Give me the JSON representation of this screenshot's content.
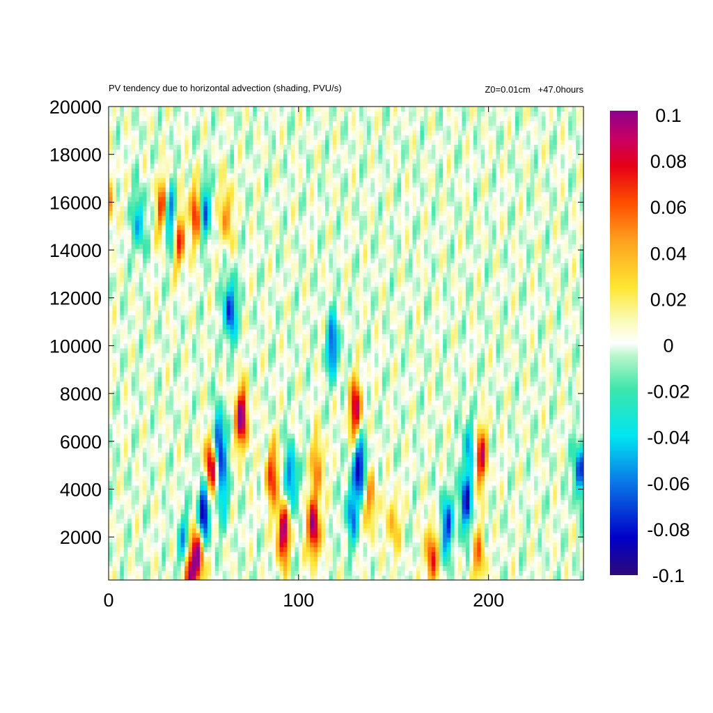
{
  "chart_data": {
    "type": "heatmap",
    "title": "PV tendency due to horizontal advection (shading, PVU/s)",
    "subtitle": "Z0=0.01cm   +47.0hours",
    "xlabel": "",
    "ylabel": "",
    "xlim": [
      0,
      250
    ],
    "ylim": [
      200,
      20000
    ],
    "x_ticks": [
      "0",
      "100",
      "200"
    ],
    "y_ticks": [
      "2000",
      "4000",
      "6000",
      "8000",
      "10000",
      "12000",
      "14000",
      "16000",
      "18000",
      "20000"
    ],
    "colorbar": {
      "range": [
        -0.1,
        0.1
      ],
      "tick_labels": [
        "0.1",
        "0.08",
        "0.06",
        "0.04",
        "0.02",
        "0",
        "-0.02",
        "-0.04",
        "-0.06",
        "-0.08",
        "-0.1"
      ],
      "colors": [
        "#2d0a7a",
        "#0000c8",
        "#0a78e6",
        "#00e6f0",
        "#3ce6aa",
        "#b4f5c8",
        "#ffffff",
        "#fafab4",
        "#ffe632",
        "#ffa01e",
        "#ff5000",
        "#e60014",
        "#c80064",
        "#8c008c"
      ]
    },
    "grid": false,
    "features": [
      {
        "x": 28,
        "y": 15800,
        "value": 0.06
      },
      {
        "x": 33,
        "y": 15300,
        "value": -0.07
      },
      {
        "x": 37,
        "y": 14500,
        "value": 0.07
      },
      {
        "x": 46,
        "y": 15600,
        "value": 0.08
      },
      {
        "x": 50,
        "y": 15700,
        "value": -0.07
      },
      {
        "x": 62,
        "y": 15500,
        "value": 0.05
      },
      {
        "x": 16,
        "y": 15200,
        "value": -0.05
      },
      {
        "x": 0,
        "y": 16000,
        "value": 0.04
      },
      {
        "x": 54,
        "y": 5000,
        "value": 0.1
      },
      {
        "x": 50,
        "y": 3000,
        "value": -0.1
      },
      {
        "x": 58,
        "y": 6000,
        "value": -0.09
      },
      {
        "x": 70,
        "y": 7000,
        "value": 0.1
      },
      {
        "x": 64,
        "y": 11500,
        "value": -0.08
      },
      {
        "x": 47,
        "y": 1200,
        "value": 0.1
      },
      {
        "x": 42,
        "y": 600,
        "value": 0.1
      },
      {
        "x": 40,
        "y": 1500,
        "value": -0.07
      },
      {
        "x": 92,
        "y": 2200,
        "value": 0.1
      },
      {
        "x": 108,
        "y": 2400,
        "value": 0.1
      },
      {
        "x": 86,
        "y": 4600,
        "value": 0.07
      },
      {
        "x": 96,
        "y": 4500,
        "value": -0.07
      },
      {
        "x": 130,
        "y": 7300,
        "value": 0.09
      },
      {
        "x": 132,
        "y": 5000,
        "value": -0.09
      },
      {
        "x": 118,
        "y": 10000,
        "value": -0.07
      },
      {
        "x": 128,
        "y": 3000,
        "value": -0.06
      },
      {
        "x": 138,
        "y": 3500,
        "value": 0.05
      },
      {
        "x": 170,
        "y": 1200,
        "value": 0.07
      },
      {
        "x": 178,
        "y": 2500,
        "value": -0.07
      },
      {
        "x": 188,
        "y": 3500,
        "value": -0.08
      },
      {
        "x": 196,
        "y": 5400,
        "value": 0.08
      },
      {
        "x": 190,
        "y": 5800,
        "value": -0.05
      },
      {
        "x": 195,
        "y": 1200,
        "value": 0.05
      },
      {
        "x": 248,
        "y": 4800,
        "value": -0.07
      },
      {
        "x": 110,
        "y": 5000,
        "value": 0.05
      },
      {
        "x": 150,
        "y": 2500,
        "value": 0.04
      },
      {
        "x": 60,
        "y": 4000,
        "value": -0.05
      }
    ]
  }
}
